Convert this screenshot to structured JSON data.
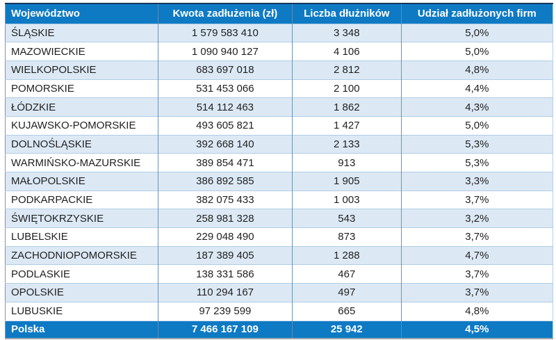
{
  "chart_data": {
    "type": "table",
    "columns": [
      "Województwo",
      "Kwota zadłużenia (zł)",
      "Liczba dłużników",
      "Udział zadłużonych firm"
    ],
    "rows": [
      [
        "ŚLĄSKIE",
        "1 579 583 410",
        "3 348",
        "5,0%"
      ],
      [
        "MAZOWIECKIE",
        "1 090 940 127",
        "4 106",
        "5,0%"
      ],
      [
        "WIELKOPOLSKIE",
        "683 697 018",
        "2 812",
        "4,8%"
      ],
      [
        "POMORSKIE",
        "531 453 066",
        "2 100",
        "4,4%"
      ],
      [
        "ŁÓDZKIE",
        "514 112 463",
        "1 862",
        "4,3%"
      ],
      [
        "KUJAWSKO-POMORSKIE",
        "493 605 821",
        "1 427",
        "5,0%"
      ],
      [
        "DOLNOŚLĄSKIE",
        "392 668 140",
        "2 133",
        "5,3%"
      ],
      [
        "WARMIŃSKO-MAZURSKIE",
        "389 854 471",
        "913",
        "5,3%"
      ],
      [
        "MAŁOPOLSKIE",
        "386 892 585",
        "1 905",
        "3,3%"
      ],
      [
        "PODKARPACKIE",
        "382 075 433",
        "1 003",
        "3,7%"
      ],
      [
        "ŚWIĘTOKRZYSKIE",
        "258 981 328",
        "543",
        "3,2%"
      ],
      [
        "LUBELSKIE",
        "229 048 490",
        "873",
        "3,7%"
      ],
      [
        "ZACHODNIOPOMORSKIE",
        "187 389 405",
        "1 288",
        "4,7%"
      ],
      [
        "PODLASKIE",
        "138 331 586",
        "467",
        "3,7%"
      ],
      [
        "OPOLSKIE",
        "110 294 167",
        "497",
        "3,7%"
      ],
      [
        "LUBUSKIE",
        "97 239 599",
        "665",
        "4,8%"
      ]
    ],
    "footer_row": [
      "Polska",
      "7 466 167 109",
      "25 942",
      "4,5%"
    ]
  },
  "colors": {
    "header_bg": "#0e7ac4",
    "footer_bg": "#0e7ac4",
    "header_text": "#ffffff",
    "row_alt_bg": "#dce9f5",
    "row_bg": "#ffffff",
    "cell_text": "#212121",
    "grid_vertical": "#6b93b5",
    "grid_horizontal": "#b0cce4",
    "top_border": "#17375e",
    "bottom_shadow": "#9ea7ad"
  }
}
